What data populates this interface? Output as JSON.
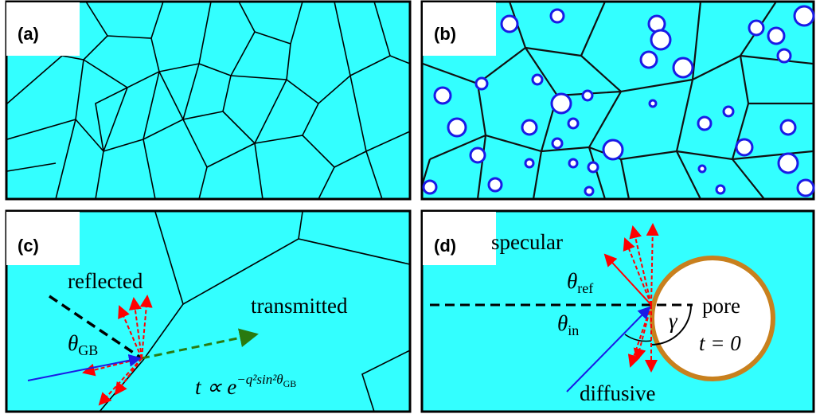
{
  "panels": [
    {
      "label": "(a)"
    },
    {
      "label": "(b)"
    },
    {
      "label": "(c)",
      "texts": {
        "reflected": "reflected",
        "transmitted": "transmitted",
        "theta_gb": {
          "symbol": "θ",
          "subscript": "GB"
        },
        "formula": {
          "base": "t ∝ e",
          "exponent": "−q²sin²θ",
          "exponent_subscript": "GB"
        }
      }
    },
    {
      "label": "(d)",
      "texts": {
        "specular": "specular",
        "theta_ref": {
          "symbol": "θ",
          "subscript": "ref"
        },
        "theta_in": {
          "symbol": "θ",
          "subscript": "in"
        },
        "gamma": "γ",
        "pore": "pore",
        "time": "t = 0",
        "diffusive": "diffusive"
      }
    }
  ]
}
